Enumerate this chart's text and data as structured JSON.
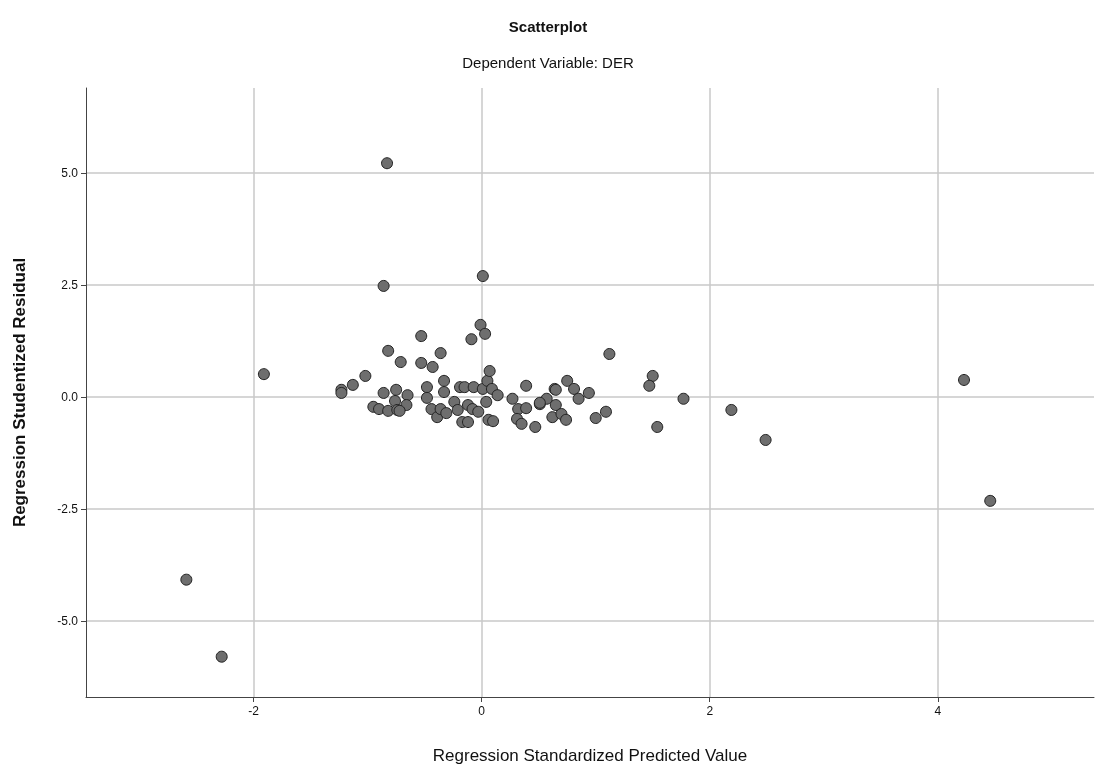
{
  "chart_data": {
    "type": "scatter",
    "title": "Scatterplot",
    "subtitle": "Dependent Variable: DER",
    "xlabel": "Regression Standardized Predicted Value",
    "ylabel": "Regression Studentized Residual",
    "xlim": [
      -3.47,
      5.37
    ],
    "ylim": [
      -6.7,
      6.9
    ],
    "xticks": [
      -2,
      0,
      2,
      4
    ],
    "yticks": [
      {
        "value": -5,
        "label": "-5.0"
      },
      {
        "value": -2.5,
        "label": "-2.5"
      },
      {
        "value": 0,
        "label": "0.0"
      },
      {
        "value": 2.5,
        "label": "2.5"
      },
      {
        "value": 5,
        "label": "5.0"
      }
    ],
    "grid": true,
    "marker": "circle",
    "series": [
      {
        "color": "#6e6e6e",
        "x": [
          -1.23,
          -1.23,
          -1.13,
          -1.02,
          -0.82,
          -0.71,
          -0.53,
          -0.53,
          -0.43,
          -0.36,
          -0.33,
          -0.33,
          -0.48,
          -0.48,
          -0.86,
          -0.75,
          -0.65,
          -0.76,
          -0.95,
          -0.9,
          -0.82,
          -0.74,
          -0.66,
          -0.72,
          -0.44,
          -0.39,
          -0.36,
          -0.31,
          -0.24,
          -0.21,
          -0.17,
          -0.12,
          -0.12,
          -0.08,
          -0.03,
          -0.19,
          -0.15,
          -0.07,
          0.01,
          0.05,
          0.07,
          0.09,
          0.14,
          0.04,
          0.06,
          0.1,
          -0.09,
          -0.01,
          0.03,
          0.27,
          0.32,
          0.39,
          0.31,
          0.35,
          0.47,
          0.39,
          0.51,
          0.57,
          0.62,
          0.64,
          0.51,
          0.65,
          0.65,
          0.7,
          0.74,
          0.75,
          0.81,
          0.85,
          0.94,
          1.0,
          1.09,
          1.12,
          1.5,
          1.47,
          1.77,
          1.54,
          2.19,
          2.49,
          -0.83,
          -0.86,
          0.01,
          -1.91,
          -2.59,
          -2.28,
          4.23,
          4.46
        ],
        "values": [
          0.16,
          0.09,
          0.27,
          0.47,
          1.03,
          0.78,
          1.36,
          0.76,
          0.67,
          0.98,
          0.36,
          0.11,
          0.22,
          -0.02,
          0.09,
          0.16,
          0.04,
          -0.09,
          -0.22,
          -0.27,
          -0.31,
          -0.29,
          -0.18,
          -0.31,
          -0.27,
          -0.45,
          -0.27,
          -0.36,
          -0.11,
          -0.29,
          -0.56,
          -0.56,
          -0.18,
          -0.27,
          -0.33,
          0.22,
          0.22,
          0.22,
          0.18,
          0.36,
          0.58,
          0.18,
          0.04,
          -0.11,
          -0.51,
          -0.54,
          1.29,
          1.61,
          1.41,
          -0.04,
          -0.27,
          -0.25,
          -0.49,
          -0.6,
          -0.67,
          0.25,
          -0.16,
          -0.04,
          -0.45,
          0.18,
          -0.13,
          0.16,
          -0.18,
          -0.38,
          -0.51,
          0.36,
          0.18,
          -0.04,
          0.09,
          -0.47,
          -0.33,
          0.96,
          0.47,
          0.25,
          -0.04,
          -0.67,
          -0.29,
          -0.96,
          5.22,
          2.48,
          2.7,
          0.51,
          -4.08,
          -5.8,
          0.38,
          -2.32
        ]
      }
    ]
  }
}
